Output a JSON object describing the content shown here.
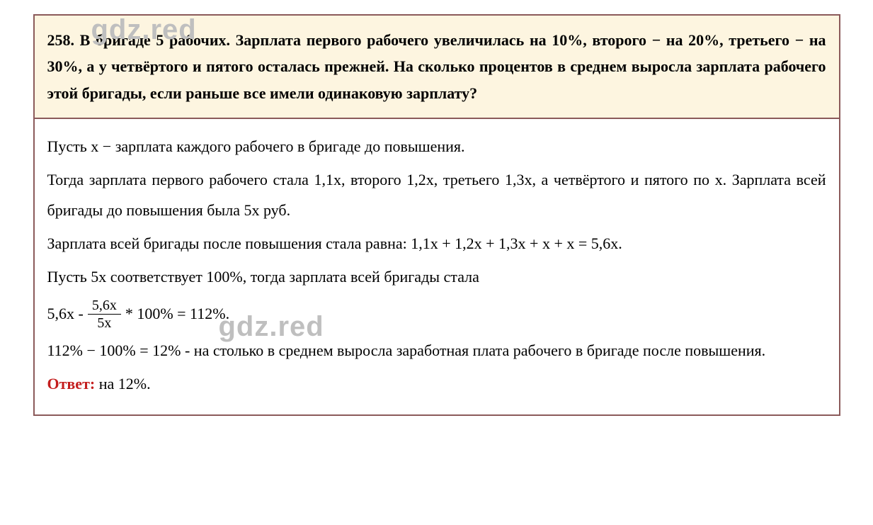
{
  "watermark": {
    "text_top": "gdz.red",
    "text_middle": "gdz.red",
    "color": "#bfbfbf",
    "fontsize": 40
  },
  "question": {
    "number": "258.",
    "text": "258. В бригаде 5 рабочих. Зарплата первого рабочего увеличилась на 10%, второго − на 20%, третьего − на 30%, а у четвёртого и пятого осталась прежней. На сколько процентов в среднем выросла зарплата рабочего этой бригады, если раньше все имели одинаковую зарплату?",
    "background_color": "#fdf5e0",
    "border_color": "#8b5a5a",
    "font_weight": "bold",
    "fontsize": 22
  },
  "solution": {
    "line1": "Пусть x − зарплата каждого рабочего в бригаде до повышения.",
    "line2": "Тогда зарплата первого рабочего стала 1,1x, второго 1,2x, третьего 1,3x, а четвёртого и пятого по x. Зарплата всей бригады до повышения была 5x руб.",
    "line3": "Зарплата всей бригады после повышения стала равна: 1,1x + 1,2x + 1,3x + x + x = 5,6x.",
    "line4": "Пусть 5x соответствует 100%, тогда зарплата всей бригады стала",
    "formula_prefix": "5,6x - ",
    "formula_numerator": "5,6x",
    "formula_denominator": "5x",
    "formula_suffix": "* 100% = 112%.",
    "line6": "112% − 100% = 12% - на столько в среднем выросла заработная плата рабочего в бригаде после повышения.",
    "answer_label": "Ответ:",
    "answer_text": " на 12%.",
    "answer_color": "#c41e1e",
    "background_color": "#ffffff",
    "fontsize": 22
  }
}
